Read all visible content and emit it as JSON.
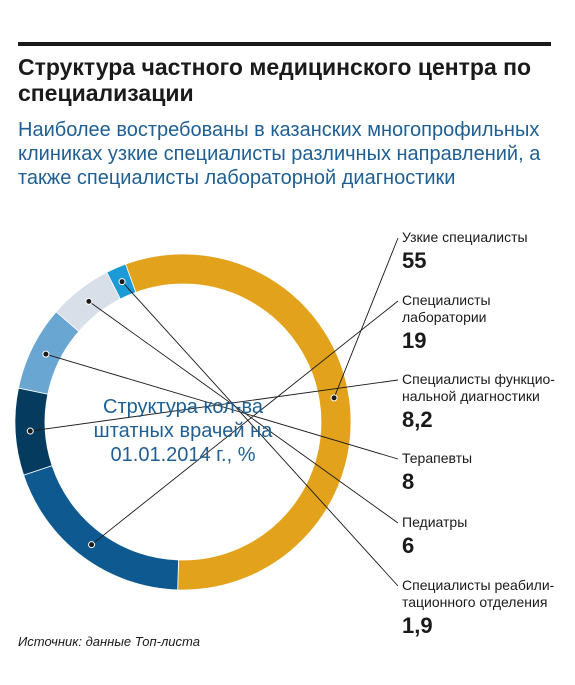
{
  "header": {
    "title": "Структура частного медицинского центра по специализации",
    "subtitle": "Наиболее востребованы в казанских многопрофильных клиниках узкие специалисты различных направлений, а также специалисты лабораторной диагностики"
  },
  "center_label": "Структура кол-ва штатных врачей на 01.01.2014 г., %",
  "source": "Источник: данные Топ-листа",
  "chart_data": {
    "type": "pie",
    "donut": true,
    "title": "Структура кол-ва штатных врачей на 01.01.2014 г., %",
    "slices": [
      {
        "label": "Узкие специалисты",
        "value": 55,
        "value_label": "55",
        "color": "#e2a21c"
      },
      {
        "label": "Специалисты лаборатории",
        "value": 19,
        "value_label": "19",
        "color": "#0e5a90"
      },
      {
        "label": "Специалисты функцио-нальной диагностики",
        "value": 8.2,
        "value_label": "8,2",
        "color": "#053b5e"
      },
      {
        "label": "Терапевты",
        "value": 8,
        "value_label": "8",
        "color": "#6aa6d2"
      },
      {
        "label": "Педиатры",
        "value": 6,
        "value_label": "6",
        "color": "#d9dfe8"
      },
      {
        "label": "Специалисты реабили-тационного отделения",
        "value": 1.9,
        "value_label": "1,9",
        "color": "#1c9ad6"
      }
    ],
    "legend_position": "right"
  }
}
